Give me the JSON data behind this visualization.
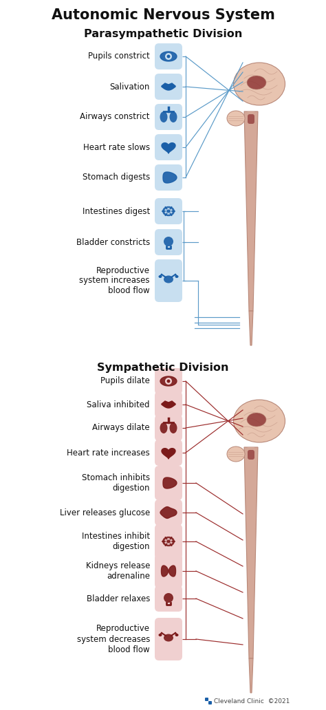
{
  "title": "Autonomic Nervous System",
  "para_title": "Parasympathetic Division",
  "sym_title": "Sympathetic Division",
  "bg_color": "#ffffff",
  "text_color": "#111111",
  "para_icon_bg": "#c8dff0",
  "sym_icon_bg": "#f0d0d0",
  "para_line_color": "#5a9ac8",
  "sym_line_color": "#9b2b2b",
  "brain_skin_light": "#e8c4b0",
  "brain_skin_mid": "#d4a898",
  "brain_skin_dark": "#b88878",
  "brain_red": "#8b3030",
  "spine_color": "#d9b0a0",
  "spine_edge": "#c09080",
  "footer": "Cleveland Clinic  ©2021",
  "cc_logo_color": "#1a5fa8",
  "para_items": [
    "Pupils constrict",
    "Salivation",
    "Airways constrict",
    "Heart rate slows",
    "Stomach digests",
    "Intestines digest",
    "Bladder constricts",
    "Reproductive\nsystem increases\nblood flow"
  ],
  "sym_items": [
    "Pupils dilate",
    "Saliva inhibited",
    "Airways dilate",
    "Heart rate increases",
    "Stomach inhibits\ndigestion",
    "Liver releases glucose",
    "Intestines inhibit\ndigestion",
    "Kidneys release\nadrenaline",
    "Bladder relaxes",
    "Reproductive\nsystem decreases\nblood flow"
  ],
  "para_icon_colors": [
    "#1a5fa8",
    "#1a5fa8",
    "#1a5fa8",
    "#1a5fa8",
    "#1a5fa8",
    "#1a5fa8",
    "#1a5fa8",
    "#1a5fa8"
  ],
  "sym_icon_colors": [
    "#7b1a1a",
    "#7b1a1a",
    "#7b1a1a",
    "#7b1a1a",
    "#7b1a1a",
    "#7b1a1a",
    "#7b1a1a",
    "#7b1a1a",
    "#7b1a1a",
    "#7b1a1a"
  ]
}
